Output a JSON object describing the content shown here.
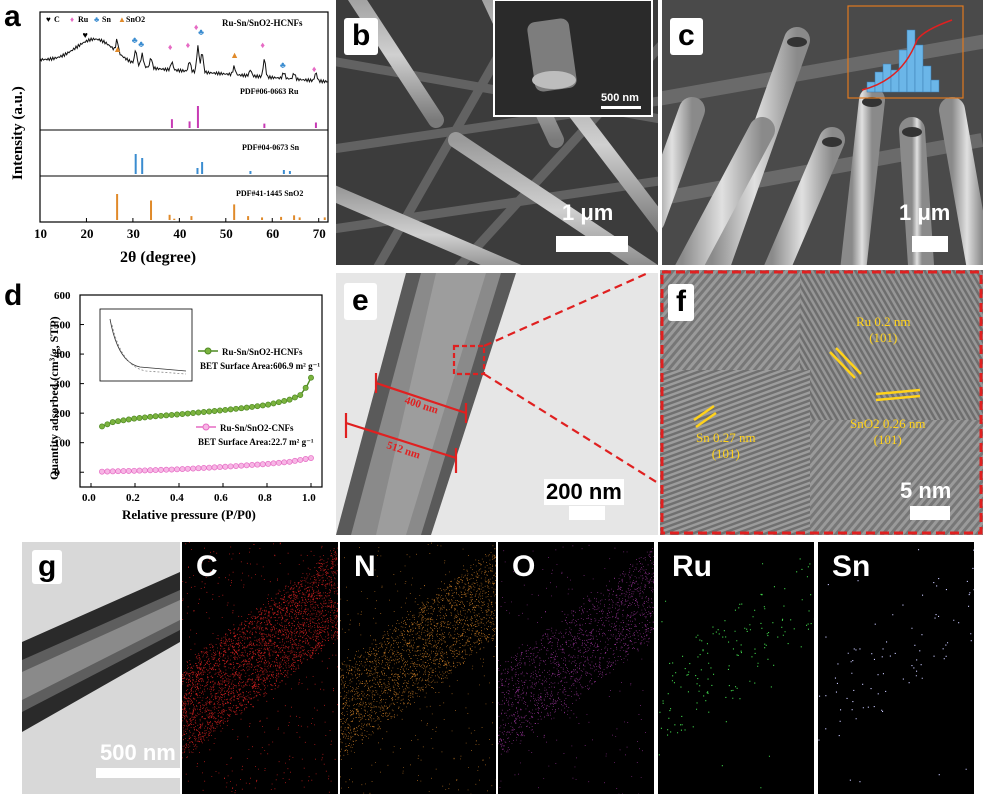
{
  "panels": {
    "a": {
      "label": "a",
      "legend": [
        "C",
        "Ru",
        "Sn",
        "SnO2"
      ],
      "sample": "Ru-Sn/SnO2-HCNFs",
      "refs": [
        "PDF#06-0663  Ru",
        "PDF#04-0673  Sn",
        "PDF#41-1445 SnO2"
      ],
      "ylabel": "Intensity (a.u.)",
      "xlabel": "2θ (degree)",
      "xticks": [
        "10",
        "20",
        "30",
        "40",
        "50",
        "60",
        "70"
      ]
    },
    "b": {
      "label": "b",
      "scale": "1 μm",
      "inset_scale": "500 nm"
    },
    "c": {
      "label": "c",
      "scale": "1 μm"
    },
    "d": {
      "label": "d",
      "ylabel": "Quantity adsorbed (cm³/g, STP)",
      "xlabel": "Relative pressure (P/P0)",
      "yticks": [
        "0",
        "100",
        "200",
        "300",
        "400",
        "500",
        "600"
      ],
      "xticks": [
        "0.0",
        "0.2",
        "0.4",
        "0.6",
        "0.8",
        "1.0"
      ],
      "series1_name": "Ru-Sn/SnO2-HCNFs",
      "series1_bet": "BET Surface Area:606.9 m² g⁻¹",
      "series2_name": "Ru-Sn/SnO2-CNFs",
      "series2_bet": "BET Surface Area:22.7 m² g⁻¹"
    },
    "e": {
      "label": "e",
      "scale": "200 nm"
    },
    "f": {
      "label": "f",
      "scale": "5 nm",
      "ru_line1": "Ru  0.2 nm",
      "ru_line2": "(101)",
      "sn_line1": "Sn  0.27 nm",
      "sn_line2": "(101)",
      "sno2_line1": "SnO2  0.26 nm",
      "sno2_line2": "(101)"
    },
    "g": {
      "label": "g",
      "scale": "500 nm"
    },
    "maps": [
      "C",
      "N",
      "O",
      "Ru",
      "Sn"
    ]
  },
  "colors": {
    "map_C": "#d42020",
    "map_N": "#e08a2a",
    "map_O": "#b03bb0",
    "map_Ru": "#3fd34a",
    "map_Sn": "#c9c9ff",
    "green_series": "#4f8a23",
    "pink_series": "#e66bc4",
    "annot_red": "#e02020",
    "fringe_yellow": "#ffd21a"
  },
  "chart_data": [
    {
      "type": "line",
      "title": "",
      "xlabel": "2θ (degree)",
      "ylabel": "Intensity (a.u.)",
      "xlim": [
        10,
        72
      ],
      "series": [
        {
          "name": "PDF#06-0663 Ru",
          "x": [
            38.4,
            42.2,
            44.0,
            58.3,
            69.4
          ],
          "values": [
            0.4,
            0.3,
            1.0,
            0.2,
            0.25
          ]
        },
        {
          "name": "PDF#04-0673 Sn",
          "x": [
            30.6,
            32.0,
            43.9,
            44.9,
            55.3,
            62.5,
            63.8
          ],
          "values": [
            1.0,
            0.8,
            0.3,
            0.6,
            0.15,
            0.2,
            0.15
          ]
        },
        {
          "name": "PDF#41-1445 SnO2",
          "x": [
            26.6,
            33.9,
            37.9,
            38.9,
            42.6,
            51.8,
            54.8,
            57.8,
            61.9,
            64.7,
            65.9,
            71.3
          ],
          "values": [
            1.0,
            0.75,
            0.2,
            0.05,
            0.15,
            0.6,
            0.15,
            0.1,
            0.12,
            0.18,
            0.1,
            0.1
          ]
        }
      ]
    },
    {
      "type": "line",
      "title": "",
      "xlabel": "Relative pressure (P/P0)",
      "ylabel": "Quantity adsorbed (cm³/g, STP)",
      "xlim": [
        -0.05,
        1.05
      ],
      "ylim": [
        -50,
        600
      ],
      "series": [
        {
          "name": "Ru-Sn/SnO2-HCNFs",
          "x": [
            0.05,
            0.1,
            0.2,
            0.3,
            0.4,
            0.5,
            0.6,
            0.7,
            0.8,
            0.9,
            0.95,
            0.98,
            1.0
          ],
          "values": [
            155,
            170,
            182,
            190,
            196,
            203,
            210,
            218,
            228,
            245,
            260,
            290,
            320
          ]
        },
        {
          "name": "Ru-Sn/SnO2-CNFs",
          "x": [
            0.05,
            0.2,
            0.4,
            0.6,
            0.8,
            0.9,
            1.0
          ],
          "values": [
            2,
            5,
            10,
            18,
            28,
            35,
            48
          ]
        }
      ]
    }
  ]
}
